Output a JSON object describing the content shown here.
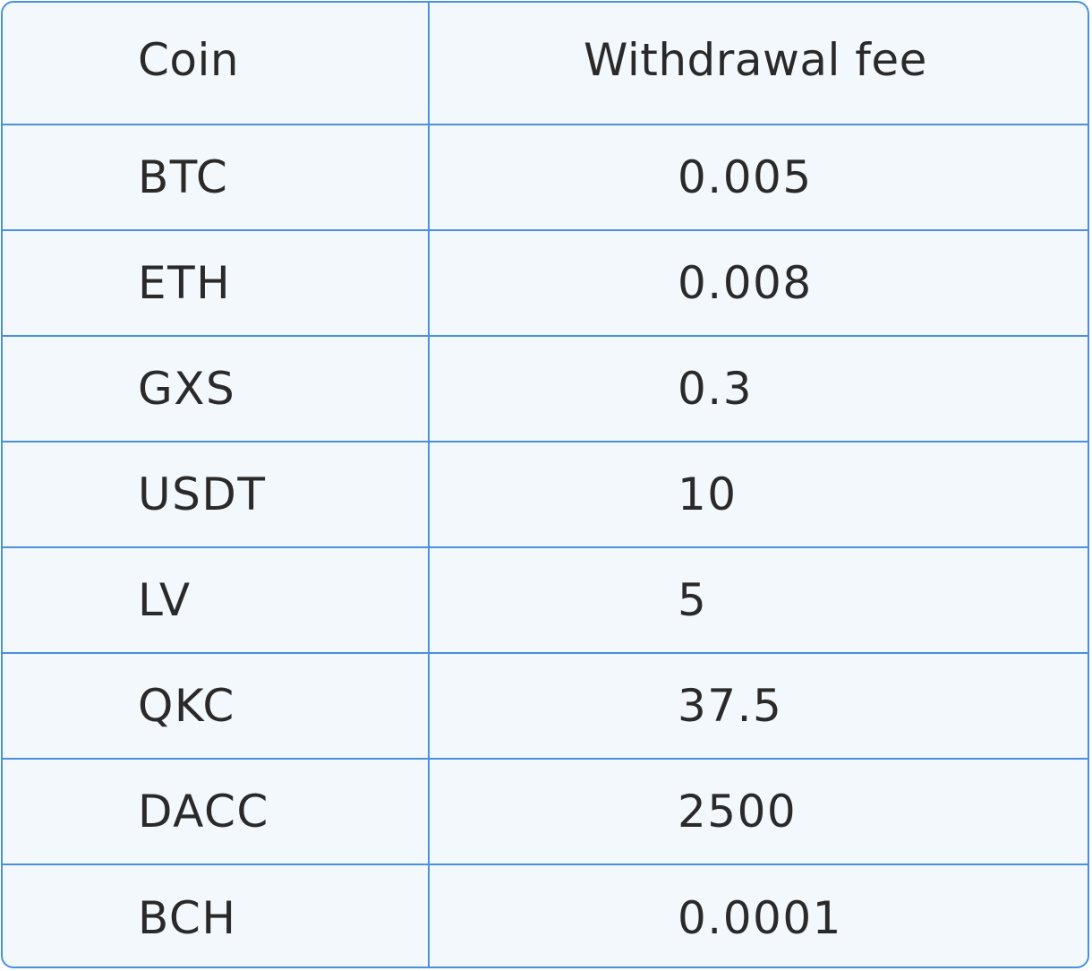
{
  "table": {
    "headers": {
      "coin": "Coin",
      "fee": "Withdrawal fee"
    },
    "rows": [
      {
        "coin": "BTC",
        "fee": "0.005"
      },
      {
        "coin": "ETH",
        "fee": "0.008"
      },
      {
        "coin": "GXS",
        "fee": "0.3"
      },
      {
        "coin": "USDT",
        "fee": "10"
      },
      {
        "coin": "LV",
        "fee": "5"
      },
      {
        "coin": "QKC",
        "fee": "37.5"
      },
      {
        "coin": "DACC",
        "fee": "2500"
      },
      {
        "coin": "BCH",
        "fee": "0.0001"
      }
    ],
    "colors": {
      "border": "#4a90e2",
      "background": "#f3f8fd",
      "text": "#2a2a2a"
    }
  }
}
